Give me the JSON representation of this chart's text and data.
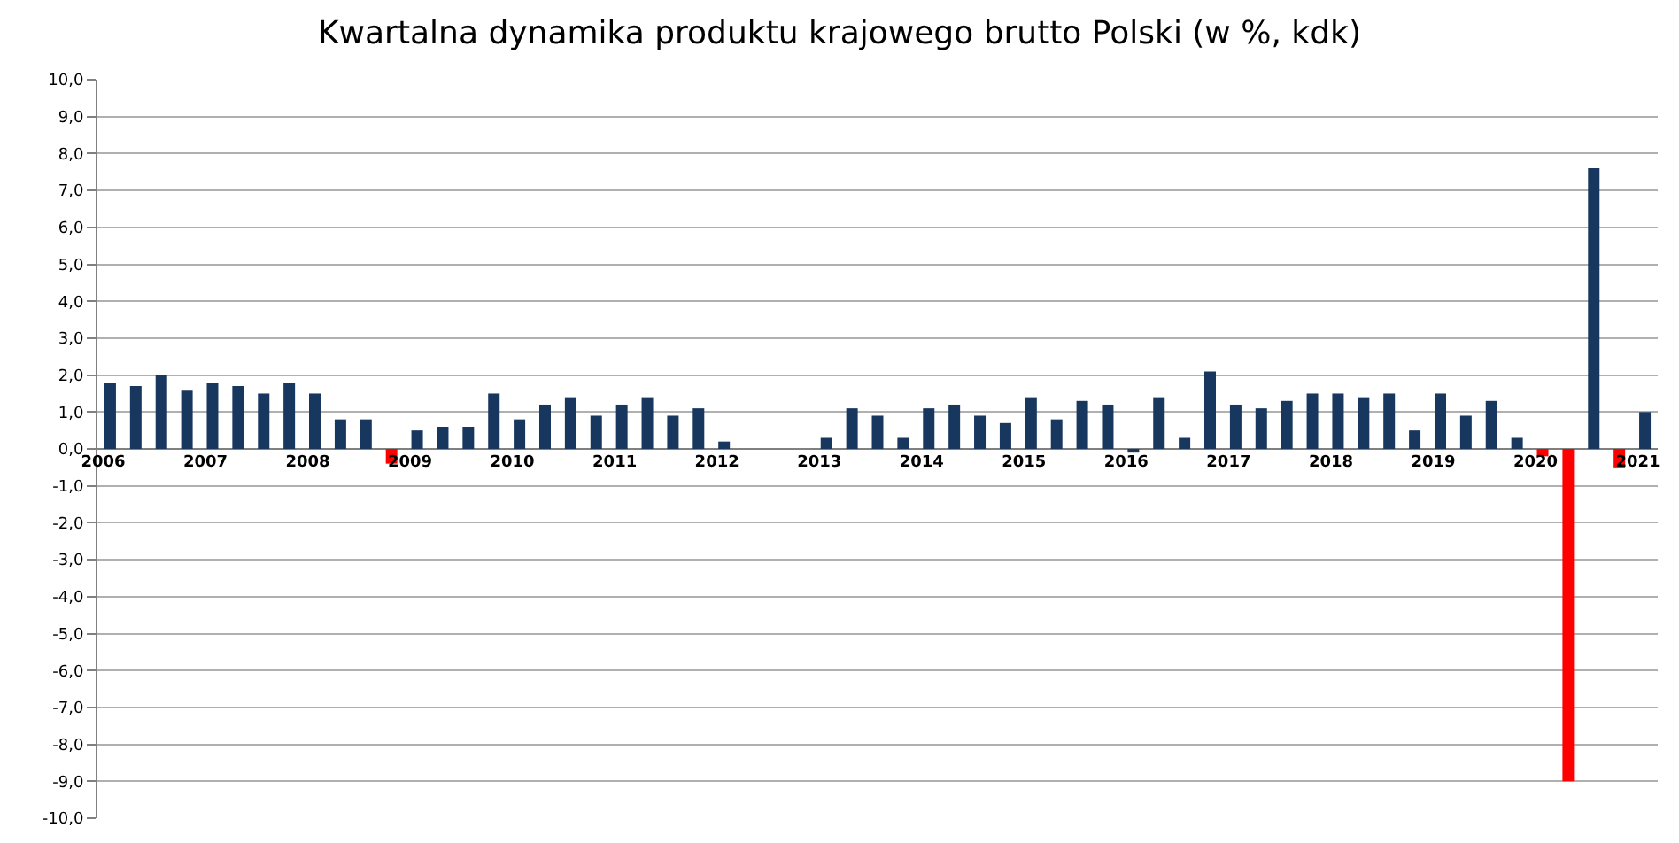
{
  "chart_data": {
    "type": "bar",
    "title": "Kwartalna dynamika produktu krajowego brutto Polski (w %, kdk)",
    "categories": [
      "2006",
      null,
      null,
      null,
      "2007",
      null,
      null,
      null,
      "2008",
      null,
      null,
      null,
      "2009",
      null,
      null,
      null,
      "2010",
      null,
      null,
      null,
      "2011",
      null,
      null,
      null,
      "2012",
      null,
      null,
      null,
      "2013",
      null,
      null,
      null,
      "2014",
      null,
      null,
      null,
      "2015",
      null,
      null,
      null,
      "2016",
      null,
      null,
      null,
      "2017",
      null,
      null,
      null,
      "2018",
      null,
      null,
      null,
      "2019",
      null,
      null,
      null,
      "2020",
      null,
      null,
      null,
      "2021"
    ],
    "values": [
      1.8,
      1.7,
      2.0,
      1.6,
      1.8,
      1.7,
      1.5,
      1.8,
      1.5,
      0.8,
      0.8,
      -0.4,
      0.5,
      0.6,
      0.6,
      1.5,
      0.8,
      1.2,
      1.4,
      0.9,
      1.2,
      1.4,
      0.9,
      1.1,
      0.2,
      null,
      null,
      null,
      0.3,
      1.1,
      0.9,
      0.3,
      1.1,
      1.2,
      0.9,
      0.7,
      1.4,
      0.8,
      1.3,
      1.2,
      -0.1,
      1.4,
      0.3,
      2.1,
      1.2,
      1.1,
      1.3,
      1.5,
      1.5,
      1.4,
      1.5,
      0.5,
      1.5,
      0.9,
      1.3,
      0.3,
      -0.2,
      -9.0,
      7.6,
      -0.5,
      1.0
    ],
    "colors": [
      "#17375e",
      "#17375e",
      "#17375e",
      "#17375e",
      "#17375e",
      "#17375e",
      "#17375e",
      "#17375e",
      "#17375e",
      "#17375e",
      "#17375e",
      "#ff0000",
      "#17375e",
      "#17375e",
      "#17375e",
      "#17375e",
      "#17375e",
      "#17375e",
      "#17375e",
      "#17375e",
      "#17375e",
      "#17375e",
      "#17375e",
      "#17375e",
      "#17375e",
      "#17375e",
      "#17375e",
      "#17375e",
      "#17375e",
      "#17375e",
      "#17375e",
      "#17375e",
      "#17375e",
      "#17375e",
      "#17375e",
      "#17375e",
      "#17375e",
      "#17375e",
      "#17375e",
      "#17375e",
      "#17375e",
      "#17375e",
      "#17375e",
      "#17375e",
      "#17375e",
      "#17375e",
      "#17375e",
      "#17375e",
      "#17375e",
      "#17375e",
      "#17375e",
      "#17375e",
      "#17375e",
      "#17375e",
      "#17375e",
      "#17375e",
      "#ff0000",
      "#ff0000",
      "#17375e",
      "#ff0000",
      "#17375e"
    ],
    "ylim": [
      -10,
      10
    ],
    "yticks": [
      {
        "value": -10,
        "label": "-10,0"
      },
      {
        "value": -9,
        "label": "-9,0"
      },
      {
        "value": -8,
        "label": "-8,0"
      },
      {
        "value": -7,
        "label": "-7,0"
      },
      {
        "value": -6,
        "label": "-6,0"
      },
      {
        "value": -5,
        "label": "-5,0"
      },
      {
        "value": -4,
        "label": "-4,0"
      },
      {
        "value": -3,
        "label": "-3,0"
      },
      {
        "value": -2,
        "label": "-2,0"
      },
      {
        "value": -1,
        "label": "-1,0"
      },
      {
        "value": 0,
        "label": "0,0"
      },
      {
        "value": 1,
        "label": "1,0"
      },
      {
        "value": 2,
        "label": "2,0"
      },
      {
        "value": 3,
        "label": "3,0"
      },
      {
        "value": 4,
        "label": "4,0"
      },
      {
        "value": 5,
        "label": "5,0"
      },
      {
        "value": 6,
        "label": "6,0"
      },
      {
        "value": 7,
        "label": "7,0"
      },
      {
        "value": 8,
        "label": "8,0"
      },
      {
        "value": 9,
        "label": "9,0"
      },
      {
        "value": 10,
        "label": "10,0"
      }
    ],
    "grid": "y"
  }
}
